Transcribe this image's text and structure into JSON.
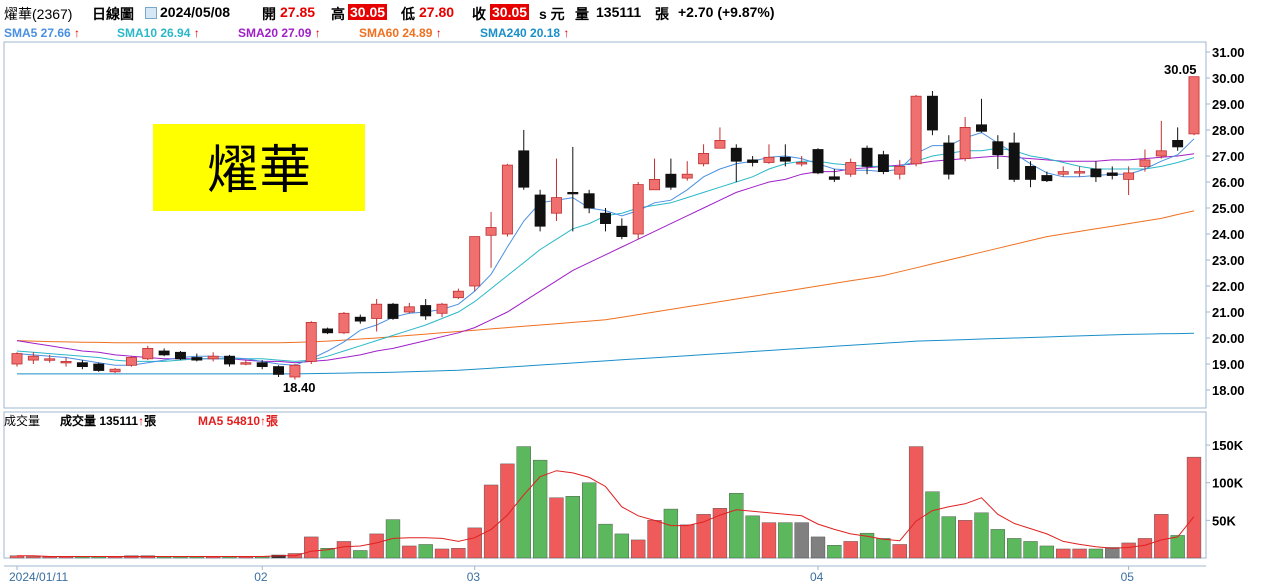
{
  "header": {
    "stock": "燿華(2367)",
    "period": "日線圖",
    "date": "2024/05/08",
    "open_label": "開",
    "open": "27.85",
    "high_label": "高",
    "high": "30.05",
    "low_label": "低",
    "low": "27.80",
    "close_label": "收",
    "close": "30.05",
    "unit": "s 元",
    "volume_label": "量",
    "volume": "135111",
    "volume_unit": "張",
    "change": "+2.70 (+9.87%)"
  },
  "ma_legend": [
    {
      "label": "SMA5 27.66",
      "color": "#4a90e2"
    },
    {
      "label": "SMA10 26.94",
      "color": "#2ab8c8"
    },
    {
      "label": "SMA20 27.09",
      "color": "#a020c8"
    },
    {
      "label": "SMA60 24.89",
      "color": "#f07020"
    },
    {
      "label": "SMA240 20.18",
      "color": "#1a8fc8"
    }
  ],
  "vol_legend": {
    "label1": "成交量",
    "label2": "成交量 135111",
    "unit": "張",
    "ma5": "MA5 54810",
    "ma5_unit": "張"
  },
  "watermark": "燿華",
  "annotations": {
    "high_label": "30.05",
    "low_label": "18.40"
  },
  "chart_data": {
    "type": "candlestick",
    "price_axis": {
      "min": 18,
      "max": 31,
      "ticks": [
        "31.00",
        "30.00",
        "29.00",
        "28.00",
        "27.00",
        "26.00",
        "25.00",
        "24.00",
        "23.00",
        "22.00",
        "21.00",
        "20.00",
        "19.00",
        "18.00"
      ]
    },
    "volume_axis": {
      "ticks": [
        "150K",
        "100K",
        "50K"
      ]
    },
    "x_labels": [
      {
        "label": "2024/01/11",
        "index": 0
      },
      {
        "label": "02",
        "index": 15
      },
      {
        "label": "03",
        "index": 28
      },
      {
        "label": "04",
        "index": 49
      },
      {
        "label": "05",
        "index": 68
      }
    ],
    "candles": [
      [
        19.0,
        19.4,
        19.45,
        18.9
      ],
      [
        19.15,
        19.3,
        19.45,
        19.0
      ],
      [
        19.2,
        19.2,
        19.35,
        19.05
      ],
      [
        19.1,
        19.1,
        19.25,
        18.9
      ],
      [
        19.05,
        18.9,
        19.15,
        18.8
      ],
      [
        19.0,
        18.75,
        19.05,
        18.7
      ],
      [
        18.7,
        18.8,
        18.85,
        18.65
      ],
      [
        18.95,
        19.25,
        19.3,
        18.9
      ],
      [
        19.2,
        19.6,
        19.7,
        19.15
      ],
      [
        19.5,
        19.35,
        19.6,
        19.3
      ],
      [
        19.45,
        19.2,
        19.5,
        19.15
      ],
      [
        19.25,
        19.15,
        19.4,
        19.1
      ],
      [
        19.2,
        19.3,
        19.45,
        19.1
      ],
      [
        19.3,
        19.0,
        19.35,
        18.9
      ],
      [
        19.05,
        19.05,
        19.15,
        18.95
      ],
      [
        19.05,
        18.9,
        19.15,
        18.8
      ],
      [
        18.9,
        18.6,
        18.95,
        18.5
      ],
      [
        18.5,
        18.95,
        19.0,
        18.4
      ],
      [
        19.1,
        20.6,
        20.65,
        19.0
      ],
      [
        20.35,
        20.2,
        20.4,
        20.15
      ],
      [
        20.2,
        20.95,
        21.0,
        20.15
      ],
      [
        20.8,
        20.65,
        20.9,
        20.55
      ],
      [
        20.75,
        21.3,
        21.5,
        20.25
      ],
      [
        21.3,
        20.75,
        21.35,
        20.7
      ],
      [
        21.0,
        21.2,
        21.35,
        20.95
      ],
      [
        21.25,
        20.85,
        21.5,
        20.7
      ],
      [
        20.95,
        21.3,
        21.35,
        20.8
      ],
      [
        21.55,
        21.8,
        21.9,
        21.5
      ],
      [
        22.0,
        23.9,
        23.9,
        21.8
      ],
      [
        23.95,
        24.25,
        24.85,
        22.7
      ],
      [
        24.0,
        26.65,
        26.7,
        23.9
      ],
      [
        27.2,
        25.8,
        28.0,
        25.7
      ],
      [
        25.5,
        24.3,
        25.7,
        24.1
      ],
      [
        24.8,
        25.4,
        26.9,
        24.5
      ],
      [
        25.6,
        25.55,
        27.35,
        24.1
      ],
      [
        25.55,
        25.0,
        25.7,
        24.8
      ],
      [
        24.8,
        24.4,
        25.0,
        24.1
      ],
      [
        24.3,
        23.9,
        24.6,
        23.8
      ],
      [
        24.0,
        25.9,
        26.0,
        23.8
      ],
      [
        25.7,
        26.1,
        26.9,
        25.7
      ],
      [
        26.3,
        25.8,
        26.9,
        25.7
      ],
      [
        26.15,
        26.3,
        26.8,
        26.05
      ],
      [
        26.7,
        27.1,
        27.45,
        26.6
      ],
      [
        27.3,
        27.6,
        28.1,
        27.3
      ],
      [
        27.3,
        26.8,
        27.45,
        26.0
      ],
      [
        26.85,
        26.75,
        27.0,
        26.6
      ],
      [
        26.75,
        26.95,
        27.45,
        26.7
      ],
      [
        26.95,
        26.8,
        27.45,
        26.6
      ],
      [
        26.75,
        26.75,
        27.0,
        26.6
      ],
      [
        27.25,
        26.35,
        27.3,
        26.3
      ],
      [
        26.2,
        26.1,
        26.5,
        26.0
      ],
      [
        26.3,
        26.75,
        26.9,
        26.2
      ],
      [
        27.3,
        26.6,
        27.4,
        26.3
      ],
      [
        27.05,
        26.4,
        27.2,
        26.3
      ],
      [
        26.3,
        26.6,
        26.85,
        26.1
      ],
      [
        26.7,
        29.3,
        29.35,
        26.6
      ],
      [
        29.3,
        28.0,
        29.5,
        27.8
      ],
      [
        27.5,
        26.3,
        27.8,
        26.1
      ],
      [
        26.9,
        28.1,
        28.5,
        26.8
      ],
      [
        28.2,
        27.95,
        29.2,
        27.9
      ],
      [
        27.55,
        27.05,
        27.8,
        26.5
      ],
      [
        27.5,
        26.1,
        27.9,
        26.0
      ],
      [
        26.6,
        26.1,
        26.8,
        25.8
      ],
      [
        26.25,
        26.05,
        26.4,
        26.0
      ],
      [
        26.3,
        26.4,
        26.6,
        26.2
      ],
      [
        26.35,
        26.4,
        26.6,
        26.2
      ],
      [
        26.5,
        26.2,
        26.8,
        26.0
      ],
      [
        26.35,
        26.25,
        26.6,
        26.1
      ],
      [
        26.1,
        26.35,
        26.6,
        25.5
      ],
      [
        26.6,
        26.85,
        27.25,
        26.4
      ],
      [
        27.0,
        27.2,
        28.35,
        26.9
      ],
      [
        27.6,
        27.35,
        28.1,
        27.2
      ],
      [
        27.85,
        30.05,
        30.05,
        27.8
      ]
    ],
    "volumes": [
      3,
      2,
      2,
      2,
      2,
      2,
      2,
      3,
      3,
      2,
      2,
      2,
      2,
      2,
      2,
      2,
      4,
      6,
      28,
      13,
      22,
      10,
      32,
      51,
      16,
      18,
      12,
      13,
      40,
      97,
      125,
      148,
      130,
      80,
      82,
      100,
      45,
      32,
      24,
      50,
      65,
      44,
      58,
      66,
      86,
      56,
      47,
      47,
      47,
      28,
      17,
      22,
      33,
      26,
      18,
      148,
      88,
      55,
      50,
      60,
      38,
      26,
      22,
      16,
      12,
      12,
      12,
      14,
      20,
      26,
      58,
      30,
      134
    ],
    "volume_down_color_override": {
      "48": "#808080",
      "49": "#808080",
      "67": "#808080",
      "16": "#303030"
    },
    "volume_ma5": [
      3,
      3,
      2,
      2,
      2,
      2,
      2,
      2,
      2,
      2,
      2,
      2,
      2,
      2,
      2,
      2,
      3,
      3,
      9,
      11,
      15,
      16,
      20,
      26,
      27,
      27,
      26,
      22,
      27,
      38,
      57,
      84,
      108,
      116,
      113,
      107,
      95,
      68,
      56,
      50,
      43,
      43,
      48,
      57,
      64,
      62,
      60,
      58,
      56,
      45,
      38,
      32,
      29,
      25,
      23,
      49,
      63,
      68,
      72,
      80,
      58,
      46,
      39,
      32,
      22,
      18,
      15,
      13,
      14,
      17,
      24,
      28,
      55
    ],
    "sma5": [
      19.4,
      19.35,
      19.3,
      19.25,
      19.15,
      19.05,
      18.95,
      18.95,
      19.05,
      19.15,
      19.25,
      19.3,
      19.3,
      19.25,
      19.2,
      19.1,
      19.0,
      18.95,
      19.2,
      19.5,
      19.85,
      20.3,
      20.5,
      20.8,
      20.95,
      21.0,
      21.1,
      21.3,
      21.8,
      22.45,
      23.5,
      24.5,
      25.2,
      25.3,
      25.4,
      25.0,
      24.9,
      24.7,
      24.9,
      25.2,
      25.3,
      25.7,
      26.2,
      26.5,
      26.7,
      26.8,
      26.95,
      27.0,
      26.9,
      26.7,
      26.5,
      26.45,
      26.45,
      26.4,
      26.5,
      27.1,
      27.4,
      27.4,
      27.7,
      27.9,
      27.5,
      27.1,
      26.7,
      26.35,
      26.2,
      26.2,
      26.25,
      26.3,
      26.3,
      26.5,
      26.8,
      27.05,
      27.66
    ],
    "sma10": [
      19.5,
      19.45,
      19.4,
      19.35,
      19.3,
      19.25,
      19.15,
      19.1,
      19.1,
      19.1,
      19.15,
      19.2,
      19.2,
      19.2,
      19.2,
      19.2,
      19.15,
      19.1,
      19.15,
      19.3,
      19.5,
      19.7,
      19.9,
      20.1,
      20.3,
      20.5,
      20.75,
      21.0,
      21.4,
      21.9,
      22.4,
      22.9,
      23.4,
      23.8,
      24.2,
      24.4,
      24.7,
      24.8,
      25.0,
      25.1,
      25.2,
      25.4,
      25.6,
      25.8,
      26.0,
      26.2,
      26.5,
      26.7,
      26.8,
      26.8,
      26.7,
      26.65,
      26.6,
      26.6,
      26.6,
      26.8,
      27.0,
      27.1,
      27.2,
      27.2,
      27.3,
      27.2,
      27.0,
      26.9,
      26.75,
      26.6,
      26.5,
      26.5,
      26.5,
      26.5,
      26.6,
      26.75,
      26.94
    ],
    "sma20": [
      19.9,
      19.8,
      19.7,
      19.6,
      19.5,
      19.45,
      19.35,
      19.3,
      19.25,
      19.2,
      19.2,
      19.2,
      19.2,
      19.2,
      19.15,
      19.1,
      19.1,
      19.05,
      19.1,
      19.15,
      19.25,
      19.35,
      19.5,
      19.6,
      19.75,
      19.9,
      20.05,
      20.2,
      20.4,
      20.7,
      21.0,
      21.4,
      21.8,
      22.2,
      22.6,
      22.9,
      23.2,
      23.5,
      23.8,
      24.1,
      24.4,
      24.7,
      25.0,
      25.3,
      25.6,
      25.8,
      26.0,
      26.1,
      26.3,
      26.4,
      26.4,
      26.5,
      26.55,
      26.6,
      26.65,
      26.7,
      26.8,
      26.85,
      26.9,
      26.95,
      27.0,
      26.95,
      26.9,
      26.85,
      26.8,
      26.8,
      26.8,
      26.85,
      26.85,
      26.9,
      26.95,
      27.0,
      27.09
    ],
    "sma60": [
      19.9,
      19.88,
      19.86,
      19.85,
      19.84,
      19.83,
      19.82,
      19.82,
      19.82,
      19.82,
      19.82,
      19.82,
      19.82,
      19.82,
      19.82,
      19.82,
      19.82,
      19.83,
      19.85,
      19.88,
      19.92,
      19.96,
      20.0,
      20.05,
      20.1,
      20.15,
      20.2,
      20.25,
      20.3,
      20.35,
      20.4,
      20.45,
      20.5,
      20.55,
      20.6,
      20.65,
      20.7,
      20.8,
      20.9,
      21.0,
      21.1,
      21.2,
      21.3,
      21.4,
      21.5,
      21.6,
      21.7,
      21.8,
      21.9,
      22.0,
      22.1,
      22.2,
      22.3,
      22.4,
      22.55,
      22.7,
      22.85,
      23.0,
      23.15,
      23.3,
      23.45,
      23.6,
      23.75,
      23.9,
      24.0,
      24.1,
      24.2,
      24.3,
      24.4,
      24.5,
      24.6,
      24.75,
      24.89
    ],
    "sma240": [
      18.62,
      18.62,
      18.62,
      18.62,
      18.62,
      18.62,
      18.62,
      18.62,
      18.62,
      18.62,
      18.62,
      18.62,
      18.62,
      18.62,
      18.62,
      18.62,
      18.62,
      18.62,
      18.63,
      18.64,
      18.65,
      18.66,
      18.67,
      18.68,
      18.7,
      18.72,
      18.74,
      18.76,
      18.8,
      18.84,
      18.88,
      18.92,
      18.96,
      19.0,
      19.04,
      19.08,
      19.12,
      19.16,
      19.2,
      19.24,
      19.28,
      19.32,
      19.36,
      19.4,
      19.44,
      19.48,
      19.52,
      19.56,
      19.6,
      19.64,
      19.68,
      19.72,
      19.76,
      19.8,
      19.84,
      19.88,
      19.9,
      19.92,
      19.94,
      19.96,
      19.98,
      20.0,
      20.02,
      20.04,
      20.06,
      20.08,
      20.1,
      20.12,
      20.14,
      20.15,
      20.16,
      20.17,
      20.18
    ],
    "colors": {
      "up": "#f07070",
      "down": "#111111",
      "vol_up": "#ef5b5b",
      "vol_down": "#5cb85c",
      "ma5_vol": "#e02020"
    }
  }
}
